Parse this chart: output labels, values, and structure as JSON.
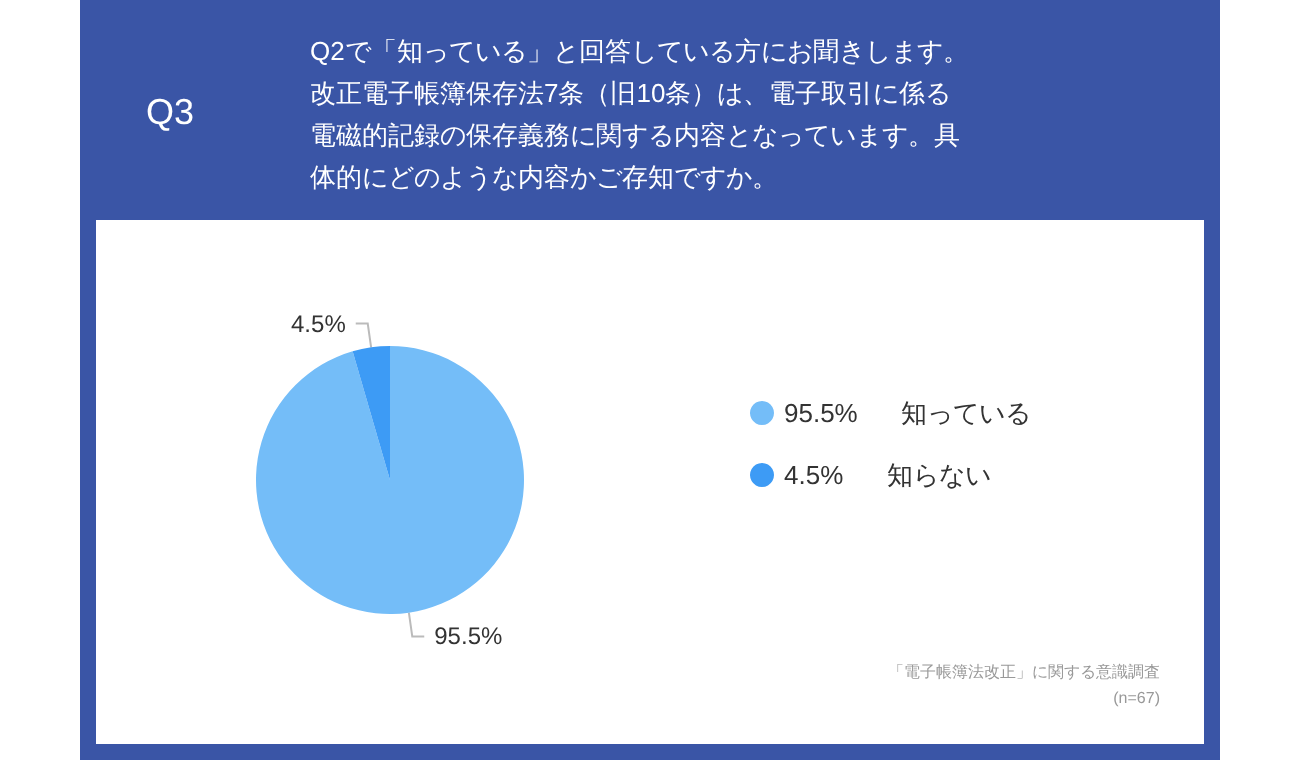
{
  "chart_data": {
    "type": "pie",
    "title": "Q3",
    "subtitle": "Q2で「知っている」と回答している方にお聞きします。改正電子帳簿保存法7条（旧10条）は、電子取引に係る電磁的記録の保存義務に関する内容となっています。具体的にどのような内容かご存知ですか。",
    "categories": [
      "知っている",
      "知らない"
    ],
    "values": [
      95.5,
      4.5
    ],
    "value_labels": [
      "95.5%",
      "4.5%"
    ],
    "colors": [
      "#74bdf8",
      "#3d9bf5"
    ],
    "legend": "right",
    "annotations": [
      "「電子帳簿法改正」に関する意識調査",
      "(n=67)"
    ]
  }
}
